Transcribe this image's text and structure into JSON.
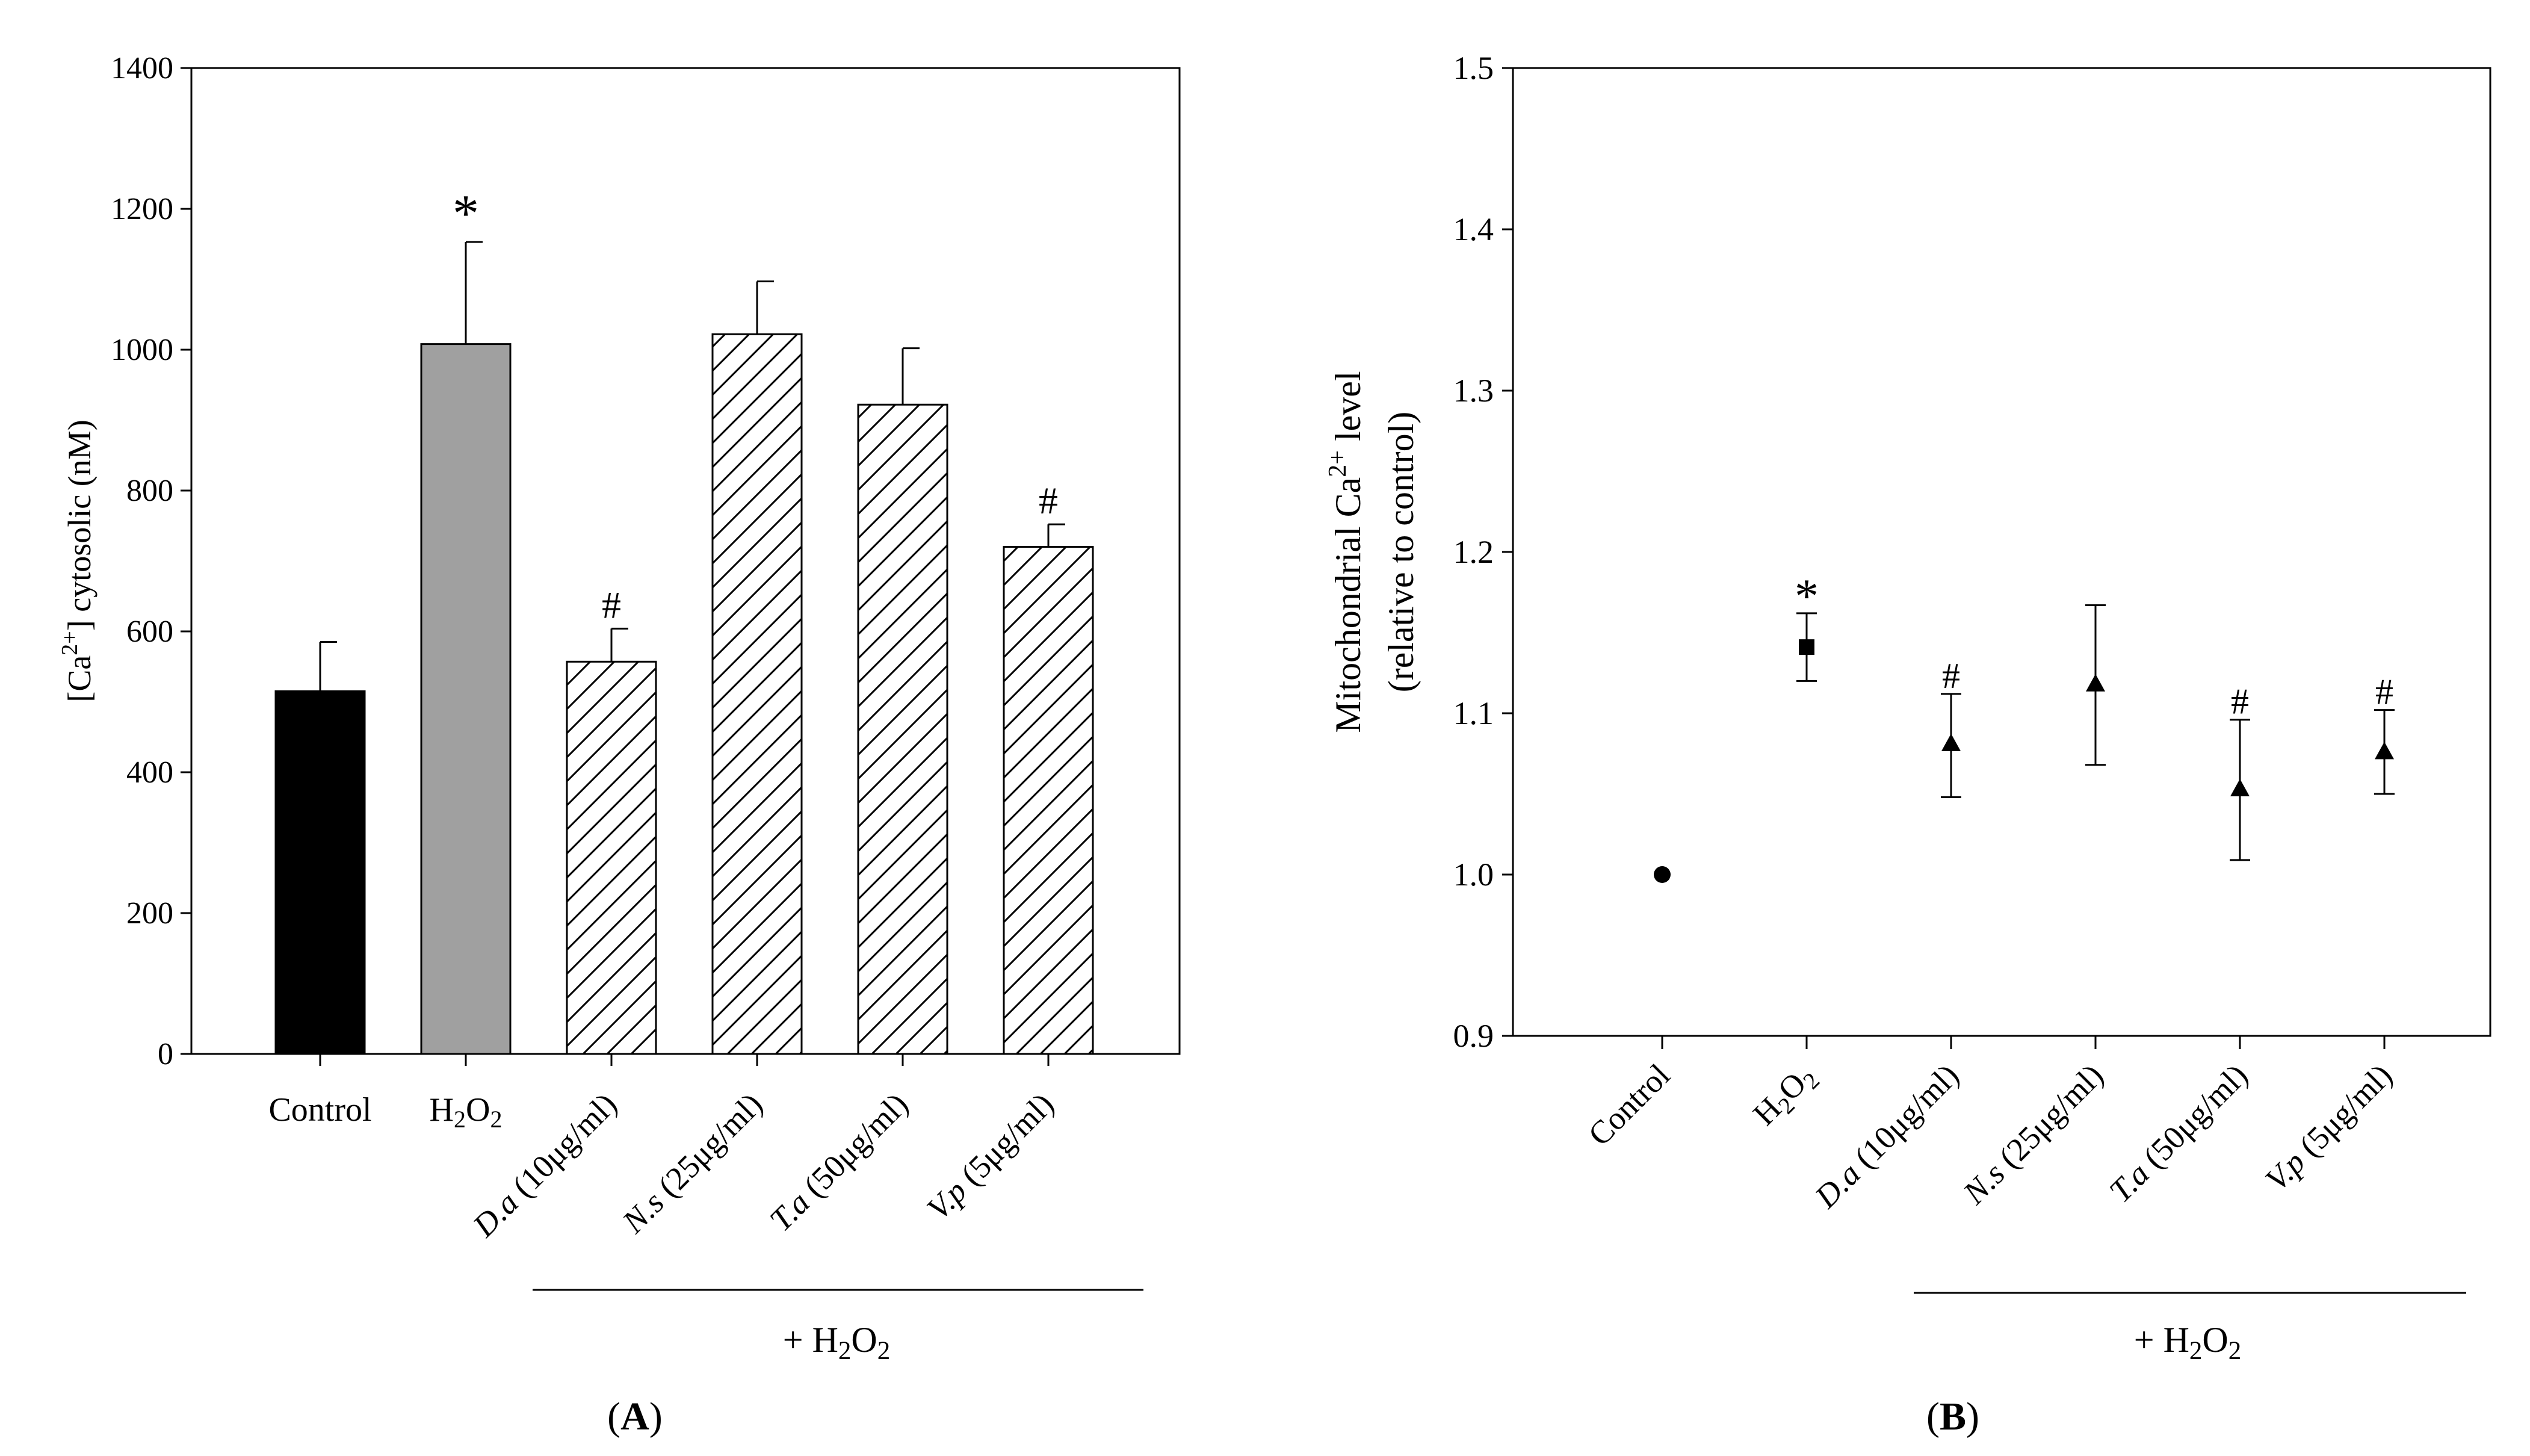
{
  "chart_data": [
    {
      "panel": "A",
      "panel_label": "A",
      "type": "bar",
      "ylabel": "[Ca2+] cytosolic (nM)",
      "ylabel_parts": {
        "pre": "[Ca",
        "sup": "2+",
        "post": "] cytosolic (nM)"
      },
      "ylim": [
        0,
        1400
      ],
      "yticks": [
        0,
        200,
        400,
        600,
        800,
        1000,
        1200,
        1400
      ],
      "group_label": "+ H2O2",
      "categories": [
        {
          "label": "Control",
          "pre": "Control",
          "tail": "",
          "style": "solid",
          "color": "#000000",
          "value": 515,
          "error": 70,
          "marker": ""
        },
        {
          "label": "H2O2",
          "pre": "",
          "tail": "",
          "style": "solid",
          "color": "#a0a0a0",
          "value": 1008,
          "error": 145,
          "marker": "*"
        },
        {
          "label": "D.a (10μg/ml)",
          "pre": "D.a",
          "tail": " (10μg/ml)",
          "style": "hatch",
          "color": "#ffffff",
          "value": 557,
          "error": 47,
          "marker": "#"
        },
        {
          "label": "N.s (25μg/ml)",
          "pre": "N.s",
          "tail": " (25μg/ml)",
          "style": "hatch",
          "color": "#ffffff",
          "value": 1022,
          "error": 75,
          "marker": ""
        },
        {
          "label": "T.a (50μg/ml)",
          "pre": "T.a",
          "tail": " (50μg/ml)",
          "style": "hatch",
          "color": "#ffffff",
          "value": 922,
          "error": 80,
          "marker": ""
        },
        {
          "label": "V.p (5μg/ml)",
          "pre": "V.p",
          "tail": " (5μg/ml)",
          "style": "hatch",
          "color": "#ffffff",
          "value": 720,
          "error": 32,
          "marker": "#"
        }
      ]
    },
    {
      "panel": "B",
      "panel_label": "B",
      "type": "scatter",
      "ylabel_line1": "Mitochondrial Ca2+ level",
      "ylabel_parts": {
        "pre": "Mitochondrial Ca",
        "sup": "2+",
        "post": " level"
      },
      "ylabel_line2": "(relative to control)",
      "ylim": [
        0.9,
        1.5
      ],
      "yticks": [
        "0.9",
        "1.0",
        "1.1",
        "1.2",
        "1.3",
        "1.4",
        "1.5"
      ],
      "group_label": "+ H2O2",
      "categories": [
        {
          "label": "Control",
          "pre": "Control",
          "tail": "",
          "shape": "circle",
          "value": 1.0,
          "err_up": 0,
          "err_down": 0,
          "marker": ""
        },
        {
          "label": "H2O2",
          "pre": "",
          "tail": "",
          "shape": "square",
          "value": 1.141,
          "err_up": 0.021,
          "err_down": 0.021,
          "marker": "*"
        },
        {
          "label": "D.a (10μg/ml)",
          "pre": "D.a",
          "tail": " (10μg/ml)",
          "shape": "triangle",
          "value": 1.081,
          "err_up": 0.031,
          "err_down": 0.033,
          "marker": "#"
        },
        {
          "label": "N.s (25μg/ml)",
          "pre": "N.s",
          "tail": " (25μg/ml)",
          "shape": "triangle",
          "value": 1.118,
          "err_up": 0.049,
          "err_down": 0.05,
          "marker": ""
        },
        {
          "label": "T.a (50μg/ml)",
          "pre": "T.a",
          "tail": " (50μg/ml)",
          "shape": "triangle",
          "value": 1.053,
          "err_up": 0.043,
          "err_down": 0.044,
          "marker": "#"
        },
        {
          "label": "V.p (5μg/ml)",
          "pre": "V.p",
          "tail": " (5μg/ml)",
          "shape": "triangle",
          "value": 1.076,
          "err_up": 0.026,
          "err_down": 0.026,
          "marker": "#"
        }
      ]
    }
  ]
}
